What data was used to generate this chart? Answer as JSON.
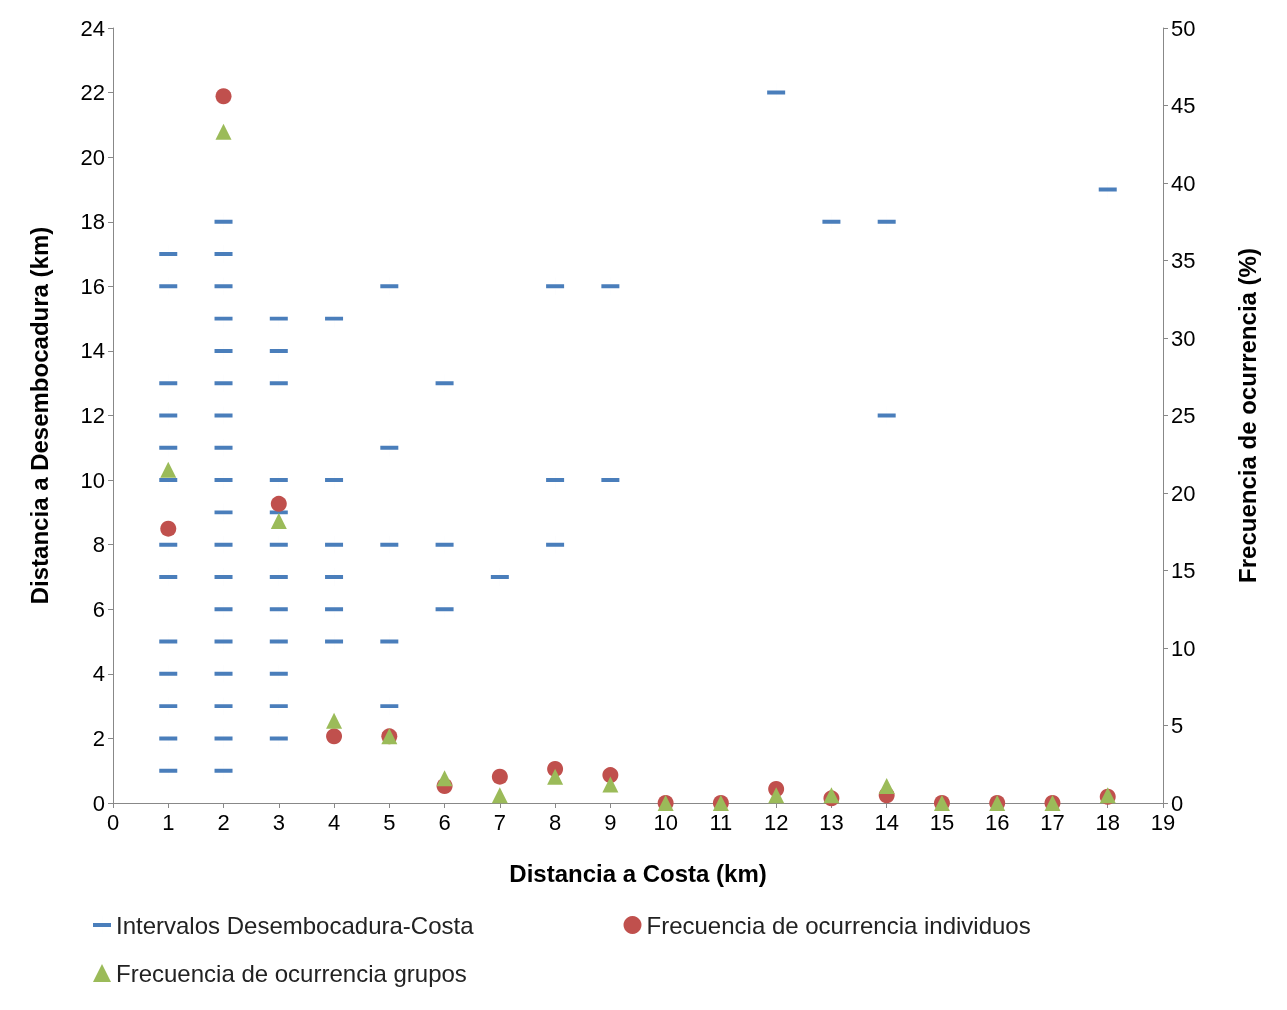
{
  "chart_data": {
    "type": "scatter",
    "xlabel": "Distancia a Costa (km)",
    "ylabel": "Distancia a Desembocadura (km)",
    "y2label": "Frecuencia de ocurrencia (%)",
    "xlim": [
      0,
      19
    ],
    "xticks": [
      0,
      1,
      2,
      3,
      4,
      5,
      6,
      7,
      8,
      9,
      10,
      11,
      12,
      13,
      14,
      15,
      16,
      17,
      18,
      19
    ],
    "ylim": [
      0,
      24
    ],
    "yticks": [
      0,
      2,
      4,
      6,
      8,
      10,
      12,
      14,
      16,
      18,
      20,
      22,
      24
    ],
    "y2lim": [
      0,
      50
    ],
    "y2ticks": [
      0,
      5,
      10,
      15,
      20,
      25,
      30,
      35,
      40,
      45,
      50
    ],
    "grid": false,
    "legend": "bottom",
    "series": [
      {
        "name": "Intervalos Desembocadura-Costa",
        "color": "#4a7ebb",
        "x": [
          1,
          1,
          1,
          1,
          1,
          1,
          1,
          1,
          1,
          1,
          1,
          1,
          1,
          2,
          2,
          2,
          2,
          2,
          2,
          2,
          2,
          2,
          2,
          2,
          2,
          2,
          2,
          2,
          2,
          2,
          2,
          3,
          3,
          3,
          3,
          3,
          3,
          3,
          3,
          3,
          3,
          3,
          3,
          4,
          4,
          4,
          4,
          4,
          4,
          5,
          5,
          5,
          5,
          5,
          6,
          6,
          6,
          7,
          8,
          8,
          8,
          9,
          9,
          12,
          13,
          14,
          14,
          18
        ],
        "values": [
          1,
          2,
          3,
          4,
          5,
          7,
          8,
          10,
          11,
          12,
          13,
          16,
          17,
          1,
          2,
          3,
          4,
          5,
          6,
          7,
          8,
          9,
          10,
          11,
          12,
          13,
          14,
          15,
          16,
          17,
          18,
          2,
          3,
          4,
          5,
          6,
          7,
          8,
          9,
          10,
          13,
          14,
          15,
          5,
          6,
          7,
          8,
          10,
          15,
          3,
          5,
          8,
          11,
          16,
          6,
          8,
          13,
          7,
          8,
          10,
          16,
          10,
          16,
          22,
          18,
          12,
          18,
          19
        ]
      },
      {
        "name": "Frecuencia de ocurrencia individuos",
        "color": "#c0504d",
        "marker": "circle",
        "axis": "y2",
        "x": [
          1,
          2,
          3,
          4,
          5,
          6,
          7,
          8,
          9,
          10,
          11,
          12,
          13,
          14,
          15,
          16,
          17,
          18
        ],
        "values": [
          17.7,
          45.6,
          19.3,
          4.3,
          4.3,
          1.1,
          1.7,
          2.2,
          1.8,
          0,
          0,
          0.9,
          0.3,
          0.5,
          0,
          0,
          0,
          0.4
        ]
      },
      {
        "name": "Frecuencia de ocurrencia grupos",
        "color": "#9bbb59",
        "marker": "triangle",
        "axis": "y2",
        "x": [
          1,
          2,
          3,
          4,
          5,
          6,
          7,
          8,
          9,
          10,
          11,
          12,
          13,
          14,
          15,
          16,
          17,
          18
        ],
        "values": [
          21.5,
          43.3,
          18.2,
          5.3,
          4.3,
          1.6,
          0.5,
          1.7,
          1.2,
          0,
          0,
          0.5,
          0.5,
          1.1,
          0,
          0,
          0,
          0.5
        ]
      }
    ]
  }
}
